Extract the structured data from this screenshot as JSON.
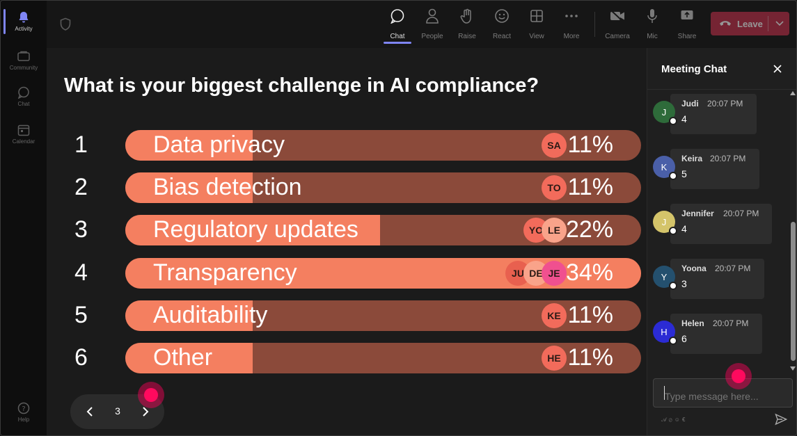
{
  "rail": {
    "items": [
      {
        "label": "Activity",
        "icon": "bell-icon",
        "active": true
      },
      {
        "label": "Community",
        "icon": "community-icon",
        "active": false
      },
      {
        "label": "Chat",
        "icon": "chat-icon",
        "active": false
      },
      {
        "label": "Calendar",
        "icon": "calendar-icon",
        "active": false
      }
    ],
    "help_label": "Help"
  },
  "toolbar": {
    "chat": "Chat",
    "people": "People",
    "raise": "Raise",
    "react": "React",
    "view": "View",
    "more": "More",
    "camera": "Camera",
    "mic": "Mic",
    "share": "Share",
    "leave": "Leave"
  },
  "poll": {
    "question": "What is your biggest challenge in AI compliance?",
    "options": [
      {
        "num": "1",
        "label": "Data privacy",
        "percent": "11%",
        "fraction": 0.11,
        "avatars": [
          {
            "initials": "SA",
            "color": "#f26b5b"
          }
        ]
      },
      {
        "num": "2",
        "label": "Bias detection",
        "percent": "11%",
        "fraction": 0.11,
        "avatars": [
          {
            "initials": "TO",
            "color": "#f26b5b"
          }
        ]
      },
      {
        "num": "3",
        "label": "Regulatory updates",
        "percent": "22%",
        "fraction": 0.22,
        "avatars": [
          {
            "initials": "YO",
            "color": "#f26b5b"
          },
          {
            "initials": "LE",
            "color": "#f9a38a"
          }
        ]
      },
      {
        "num": "4",
        "label": "Transparency",
        "percent": "34%",
        "fraction": 0.34,
        "avatars": [
          {
            "initials": "JU",
            "color": "#e8604f"
          },
          {
            "initials": "DE",
            "color": "#f9a38a"
          },
          {
            "initials": "JE",
            "color": "#f0508f"
          }
        ]
      },
      {
        "num": "5",
        "label": "Auditability",
        "percent": "11%",
        "fraction": 0.11,
        "avatars": [
          {
            "initials": "KE",
            "color": "#f26b5b"
          }
        ]
      },
      {
        "num": "6",
        "label": "Other",
        "percent": "11%",
        "fraction": 0.11,
        "avatars": [
          {
            "initials": "HE",
            "color": "#f26b5b"
          }
        ]
      }
    ],
    "page": "3"
  },
  "chat": {
    "title": "Meeting Chat",
    "messages": [
      {
        "name": "Judi",
        "initial": "J",
        "time": "20:07 PM",
        "text": "4",
        "color": "#2e6b3a"
      },
      {
        "name": "Keira",
        "initial": "K",
        "time": "20:07 PM",
        "text": "5",
        "color": "#4a5fa8"
      },
      {
        "name": "Jennifer",
        "initial": "J",
        "time": "20:07 PM",
        "text": "4",
        "color": "#d4c46a"
      },
      {
        "name": "Yoona",
        "initial": "Y",
        "time": "20:07 PM",
        "text": "3",
        "color": "#24506e"
      },
      {
        "name": "Helen",
        "initial": "H",
        "time": "20:07 PM",
        "text": "6",
        "color": "#2b2bd4"
      }
    ],
    "input_placeholder": "Type message here..."
  }
}
